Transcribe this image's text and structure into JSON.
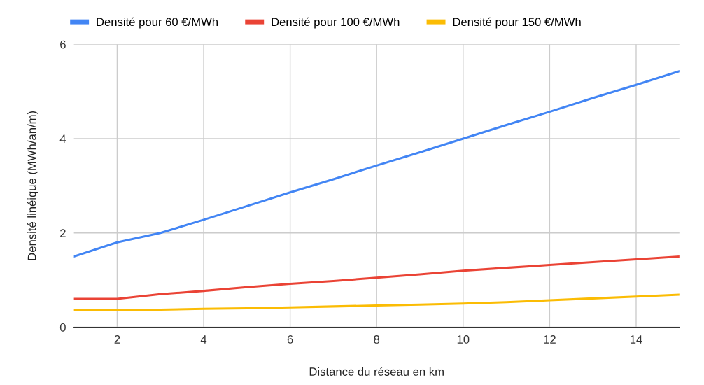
{
  "chart_data": {
    "type": "line",
    "xlabel": "Distance du réseau en km",
    "ylabel": "Densité linéique (MWh/an/m)",
    "x": [
      1,
      2,
      3,
      4,
      5,
      6,
      7,
      8,
      9,
      10,
      11,
      12,
      13,
      14,
      15
    ],
    "series": [
      {
        "name": "Densité pour 60 €/MWh",
        "color": "#4285f4",
        "values": [
          1.5,
          1.8,
          2.0,
          2.28,
          2.57,
          2.86,
          3.14,
          3.43,
          3.71,
          4.0,
          4.29,
          4.57,
          4.86,
          5.14,
          5.43
        ]
      },
      {
        "name": "Densité pour 100 €/MWh",
        "color": "#ea4335",
        "values": [
          0.6,
          0.6,
          0.7,
          0.77,
          0.85,
          0.92,
          0.98,
          1.05,
          1.12,
          1.2,
          1.26,
          1.32,
          1.38,
          1.44,
          1.5
        ]
      },
      {
        "name": "Densité pour 150 €/MWh",
        "color": "#fbbc04",
        "values": [
          0.37,
          0.37,
          0.37,
          0.39,
          0.4,
          0.42,
          0.44,
          0.46,
          0.48,
          0.5,
          0.53,
          0.57,
          0.61,
          0.65,
          0.69
        ]
      }
    ],
    "xlim": [
      1,
      15
    ],
    "xticks": [
      2,
      4,
      6,
      8,
      10,
      12,
      14
    ],
    "ylim": [
      0,
      6
    ],
    "yticks": [
      0,
      2,
      4,
      6
    ],
    "grid": true,
    "legend": "top left",
    "marker": "none",
    "line_style": "solid"
  }
}
